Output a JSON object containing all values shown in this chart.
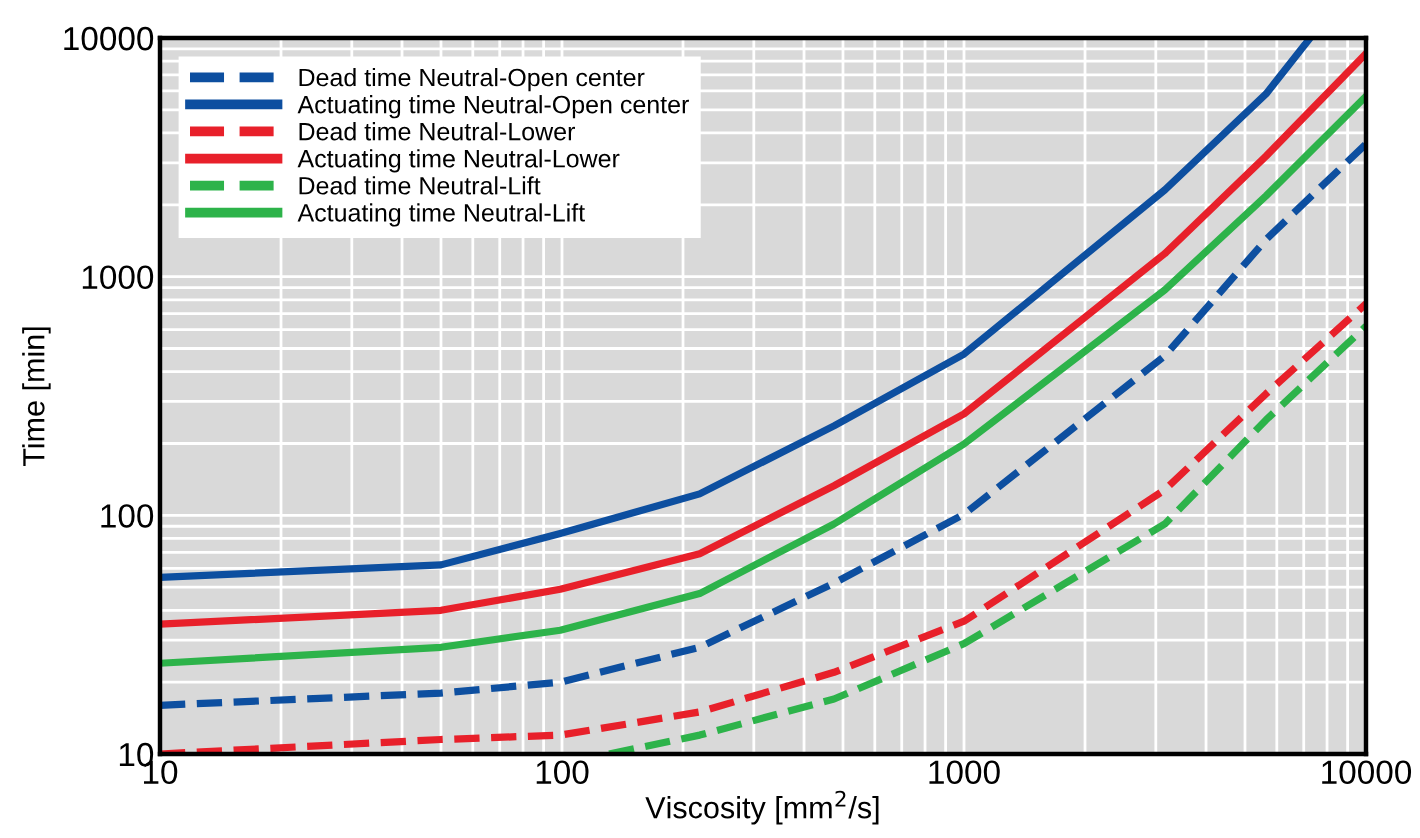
{
  "chart_data": {
    "type": "line",
    "xlabel": "Viscosity [mm$^{2}$/s]",
    "ylabel": "Time [min]",
    "log": "xy",
    "xlim": [
      10,
      10000
    ],
    "ylim": [
      10,
      10000
    ],
    "xticks": [
      10,
      100,
      1000,
      10000
    ],
    "yticks": [
      10,
      100,
      1000,
      10000
    ],
    "grid": true,
    "legend": "top left",
    "marker": "none",
    "series": [
      {
        "name": "Dead time Neutral-Open center",
        "color": "#0d4fa0",
        "line_style": "dashed",
        "x": [
          10,
          50,
          99,
          220,
          475,
          1000,
          3160,
          5640,
          10000
        ],
        "values": [
          16,
          18,
          20,
          28,
          52,
          101,
          466,
          1430,
          3600
        ]
      },
      {
        "name": "Actuating time Neutral-Open center",
        "color": "#0d4fa0",
        "line_style": "solid",
        "x": [
          10,
          50,
          99,
          220,
          475,
          1000,
          3160,
          5640,
          7260
        ],
        "values": [
          55,
          62,
          84,
          123,
          237,
          474,
          2310,
          5830,
          10000
        ]
      },
      {
        "name": "Dead time Neutral-Lower",
        "color": "#e8202a",
        "line_style": "dashed",
        "x": [
          10,
          50,
          99,
          220,
          475,
          1000,
          3160,
          5640,
          10000
        ],
        "values": [
          10,
          11.5,
          12,
          15,
          22,
          36,
          128,
          323,
          770
        ]
      },
      {
        "name": "Actuating time Neutral-Lower",
        "color": "#e8202a",
        "line_style": "solid",
        "x": [
          10,
          50,
          99,
          220,
          475,
          1000,
          3160,
          5640,
          10000
        ],
        "values": [
          35,
          40,
          49,
          69,
          133,
          266,
          1250,
          3200,
          8600
        ]
      },
      {
        "name": "Dead time Neutral-Lift",
        "color": "#2db34a",
        "line_style": "dashed",
        "x": [
          131,
          220,
          475,
          1000,
          3160,
          5640,
          10000
        ],
        "values": [
          10,
          12,
          17,
          29,
          92,
          251,
          620
        ]
      },
      {
        "name": "Actuating time Neutral-Lift",
        "color": "#2db34a",
        "line_style": "solid",
        "x": [
          10,
          50,
          99,
          220,
          475,
          1000,
          3160,
          5640,
          10000
        ],
        "values": [
          24,
          28,
          33,
          47,
          92,
          199,
          880,
          2180,
          5700
        ]
      }
    ]
  }
}
